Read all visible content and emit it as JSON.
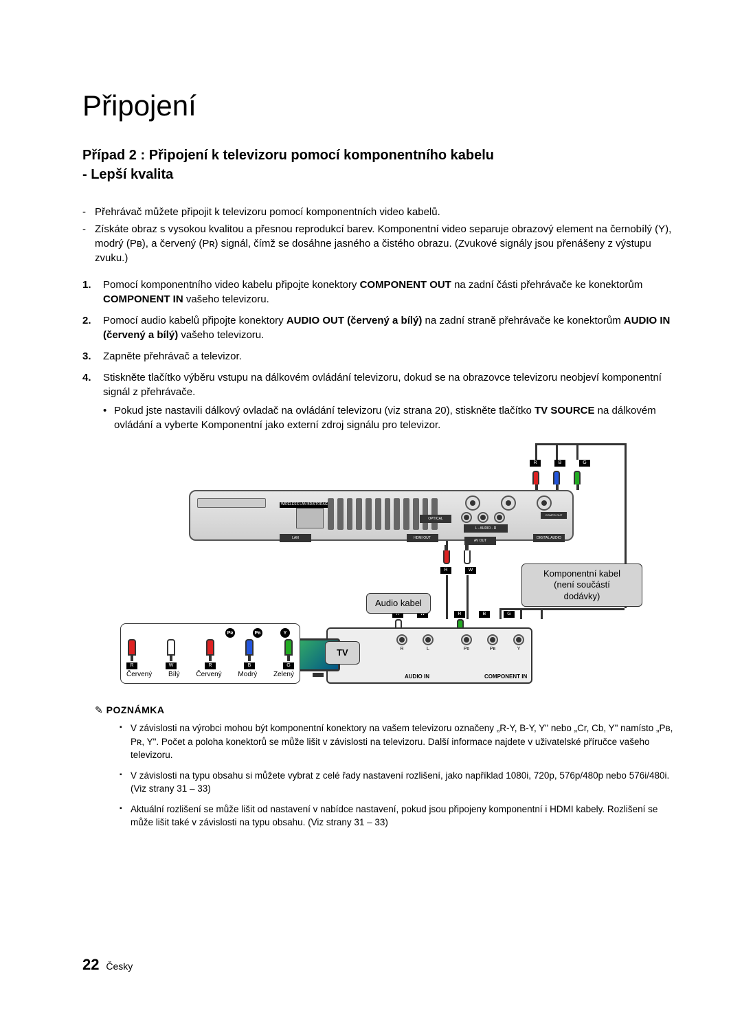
{
  "chapter_title": "Připojení",
  "case_title_line1": "Případ 2 : Připojení k televizoru pomocí komponentního kabelu",
  "case_title_line2": "- Lepší kvalita",
  "intro": [
    "Přehrávač můžete připojit k televizoru pomocí komponentních video kabelů.",
    "Získáte obraz s vysokou kvalitou a přesnou reprodukcí barev. Komponentní video separuje obrazový element na černobílý (Y), modrý (Pʙ), a červený (Pʀ) signál, čímž se dosáhne jasného a čistého obrazu. (Zvukové signály jsou přenášeny z výstupu zvuku.)"
  ],
  "steps": [
    "Pomocí komponentního video kabelu připojte konektory <b>COMPONENT OUT</b> na zadní části přehrávače ke konektorům <b>COMPONENT IN</b> vašeho televizoru.",
    "Pomocí audio kabelů připojte konektory <b>AUDIO OUT (červený a bílý)</b> na zadní straně přehrávače ke konektorům <b>AUDIO IN (červený a bílý)</b> vašeho televizoru.",
    "Zapněte přehrávač a televizor.",
    "Stiskněte tlačítko výběru vstupu na dálkovém ovládání televizoru, dokud se na obrazovce televizoru neobjeví komponentní signál z přehrávače."
  ],
  "step4_bullet": "Pokud jste nastavili dálkový ovladač na ovládání televizoru (viz strana 20), stiskněte tlačítko <b>TV SOURCE</b> na dálkovém ovládání a vyberte Komponentní jako externí zdroj signálu pro televizor.",
  "diagram": {
    "tv_label": "TV",
    "audio_cable_label": "Audio kabel",
    "component_cable_label": "Komponentní kabel\n(není součástí\ndodávky)",
    "tv_audio_in": "AUDIO IN",
    "tv_component_in": "COMPONENT IN",
    "legend_colors": [
      "Červený",
      "Bílý",
      "Červený",
      "Modrý",
      "Zelený"
    ],
    "legend_top_symbols": [
      "Pʀ",
      "Pʙ",
      "Y"
    ],
    "plug_tags": [
      "R",
      "W",
      "R",
      "B",
      "G"
    ],
    "tv_jack_top": [
      "R",
      "W",
      "R",
      "B",
      "G"
    ],
    "tv_jack_bottom": [
      "R",
      "L",
      "Pʀ",
      "Pʙ",
      "Y"
    ],
    "player_bottom_labels": [
      "LAN",
      "HDMI OUT",
      "DIGITAL\nAUDIO OUT",
      "AV OUT"
    ],
    "player_optical": "OPTICAL",
    "player_audio": "L - AUDIO - R",
    "player_compo": "COMPO OUT",
    "player_lan": "WIRELESS\nLAN\nBD/STORAGE",
    "colors": {
      "red": "#d22222",
      "white": "#ffffff",
      "blue": "#2255dd",
      "green": "#22aa22",
      "box_gray": "#d4d4d4",
      "border": "#333333"
    }
  },
  "note_heading": "POZNÁMKA",
  "notes": [
    "V závislosti na výrobci mohou být komponentní konektory na vašem televizoru označeny „R-Y, B-Y, Y\" nebo „Cr, Cb, Y\" namísto „Pʙ, Pʀ, Y\". Počet a poloha konektorů se může lišit v závislosti na televizoru. Další informace najdete v uživatelské příručce vašeho televizoru.",
    "V závislosti na typu obsahu si můžete vybrat z celé řady nastavení rozlišení, jako například 1080i, 720p, 576p/480p nebo 576i/480i. (Viz strany 31 – 33)",
    "Aktuální rozlišení se může lišit od nastavení v nabídce nastavení, pokud jsou připojeny komponentní i HDMI kabely. Rozlišení se může lišit také v závislosti na typu obsahu. (Viz strany 31 – 33)"
  ],
  "page_number": "22",
  "language": "Česky"
}
